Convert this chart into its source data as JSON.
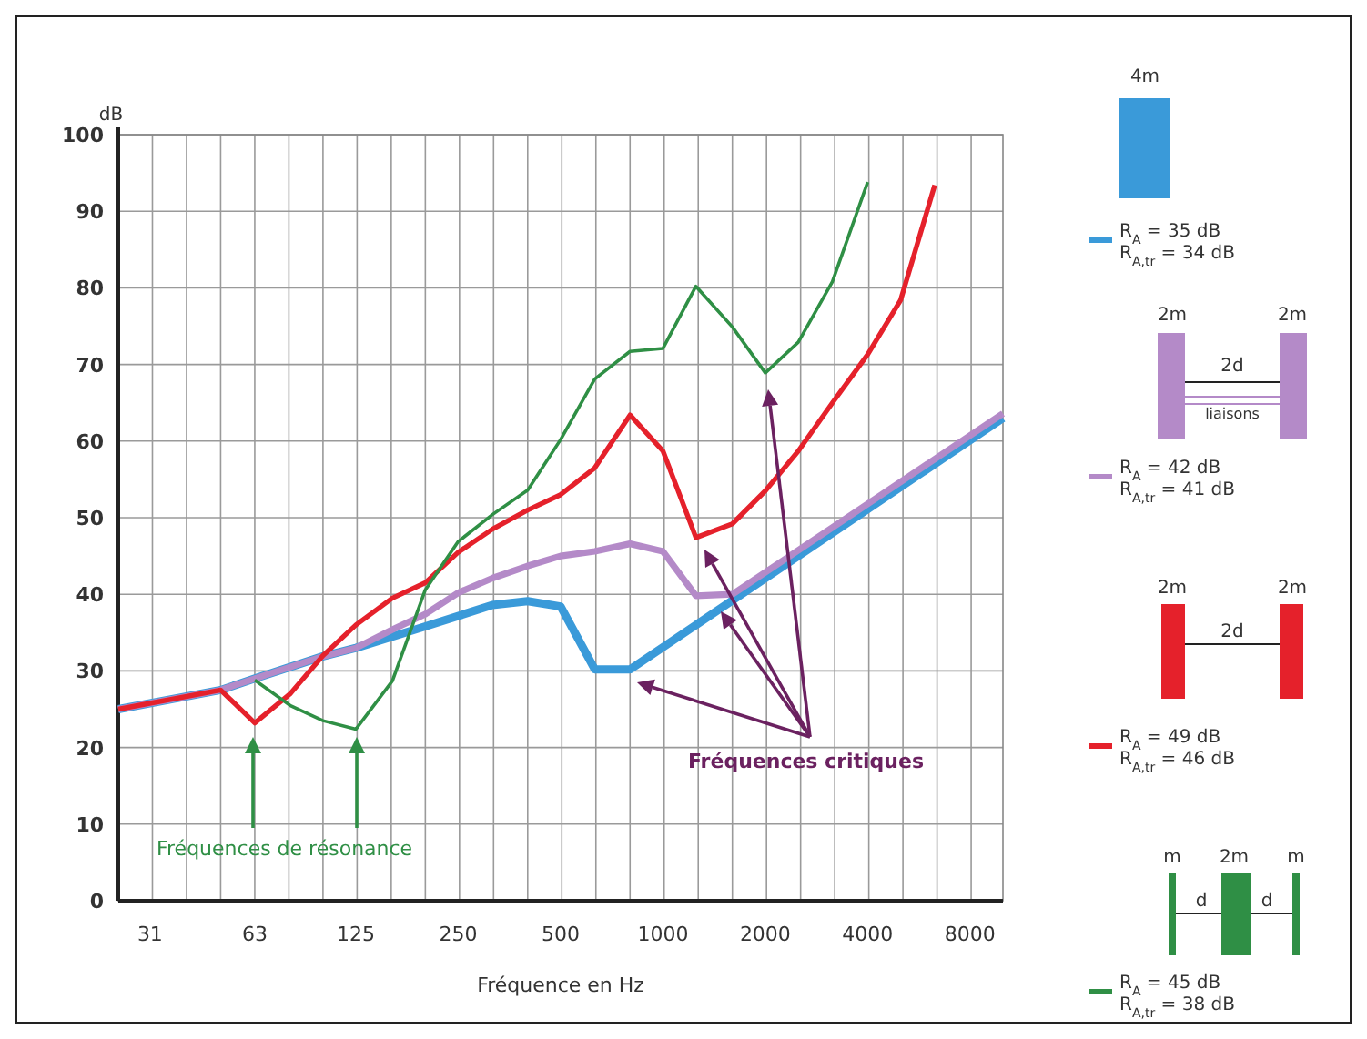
{
  "chart_data": {
    "type": "line",
    "xlabel": "Fréquence en Hz",
    "ylabel": "dB",
    "log": "x",
    "grid": true,
    "legend": "right",
    "line_style": "solid",
    "xlim": [
      25,
      10000
    ],
    "xticks": [
      31,
      63,
      125,
      250,
      500,
      1000,
      2000,
      4000,
      8000
    ],
    "ylim": [
      0,
      100
    ],
    "yticks": [
      0,
      10,
      20,
      30,
      40,
      50,
      60,
      70,
      80,
      90,
      100
    ],
    "series": [
      {
        "name": "R$_{A}$ = 35 dB\nR$_{A,tr}$ = 34 dB",
        "color": "#3a9ad9",
        "x": [
          25,
          50,
          63,
          100,
          125,
          200,
          315,
          400,
          500,
          630,
          800,
          10000
        ],
        "values": [
          25,
          27.5,
          29,
          31.9,
          33,
          35.8,
          38.6,
          39.1,
          38.4,
          30.2,
          30.2,
          63
        ]
      },
      {
        "name": "R$_{A}$ = 42 dB\nR$_{A,tr}$ = 41 dB",
        "color": "#b48ac8",
        "x": [
          25,
          50,
          63,
          100,
          125,
          160,
          200,
          250,
          315,
          400,
          500,
          630,
          800,
          1000,
          1250,
          1600,
          10000
        ],
        "values": [
          25,
          27.5,
          29,
          31.9,
          33,
          35.4,
          37.4,
          40.2,
          42.1,
          43.7,
          45,
          45.6,
          46.6,
          45.6,
          39.8,
          40,
          63.6
        ]
      },
      {
        "name": "R$_{A}$ = 49 dB\nR$_{A,tr}$ = 46 dB",
        "color": "#e5212b",
        "x": [
          25,
          50,
          63,
          80,
          100,
          125,
          160,
          200,
          250,
          315,
          400,
          500,
          630,
          800,
          1000,
          1250,
          1600,
          2000,
          2500,
          3150,
          4000,
          5000,
          6300
        ],
        "values": [
          25,
          27.5,
          23.2,
          27,
          32,
          36,
          39.5,
          41.5,
          45.5,
          48.5,
          51,
          53,
          56.5,
          63.4,
          58.7,
          47.4,
          49.2,
          53.5,
          58.7,
          65,
          71.3,
          78.4,
          93.4
        ]
      },
      {
        "name": "R$_{A}$ = 45 dB\nR$_{A,tr}$ = 38 dB",
        "color": "#2f8f45",
        "x": [
          63,
          80,
          100,
          125,
          160,
          200,
          250,
          315,
          400,
          500,
          630,
          800,
          1000,
          1250,
          1600,
          2000,
          2500,
          3150,
          4000
        ],
        "values": [
          28.8,
          25.5,
          23.5,
          22.4,
          28.7,
          40.6,
          46.9,
          50.4,
          53.6,
          60.2,
          68.1,
          71.7,
          72.1,
          80.2,
          74.9,
          68.9,
          72.9,
          80.8,
          93.8
        ]
      }
    ],
    "annotations": [
      "Fréquences de résonance",
      "Fréquences critiques",
      "4m",
      "2m",
      "2m",
      "2d",
      "liaisons",
      "2m",
      "2m",
      "2d",
      "m",
      "2m",
      "m",
      "d",
      "d"
    ]
  }
}
